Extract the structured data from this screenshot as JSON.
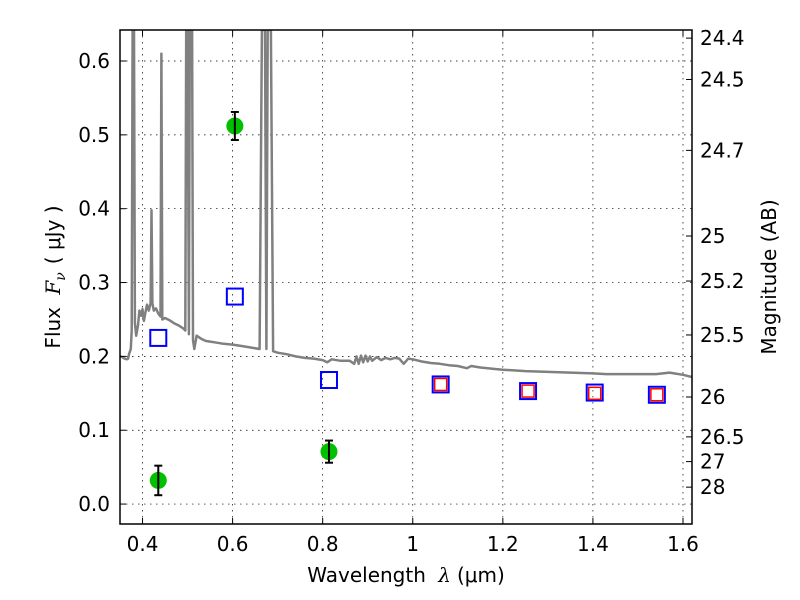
{
  "chart_data": {
    "type": "scatter",
    "title": "",
    "xlabel": "Wavelength  λ (μm)",
    "xlabel_parts": {
      "text": "Wavelength ",
      "symbol": "λ",
      "unit": "(μm)"
    },
    "ylabel": "Flux  F_ν ( μJy )",
    "ylabel_parts": {
      "text": "Flux ",
      "symbol": "F",
      "subscript": "ν",
      "unit": "( μJy )"
    },
    "y2label": "Magnitude (AB)",
    "xlim": [
      0.35,
      1.62
    ],
    "ylim": [
      -0.027,
      0.642
    ],
    "grid": true,
    "x_ticks": [
      0.4,
      0.6,
      0.8,
      1.0,
      1.2,
      1.4,
      1.6
    ],
    "x_tick_labels": [
      "0.4",
      "0.6",
      "0.8",
      "1",
      "1.2",
      "1.4",
      "1.6"
    ],
    "y_ticks": [
      0.0,
      0.1,
      0.2,
      0.3,
      0.4,
      0.5,
      0.6
    ],
    "y_tick_labels": [
      "0.0",
      "0.1",
      "0.2",
      "0.3",
      "0.4",
      "0.5",
      "0.6"
    ],
    "y2_ticks": [
      {
        "label": "24.4",
        "flux": 0.631
      },
      {
        "label": "24.5",
        "flux": 0.575
      },
      {
        "label": "24.7",
        "flux": 0.479
      },
      {
        "label": "25",
        "flux": 0.363
      },
      {
        "label": "25.2",
        "flux": 0.302
      },
      {
        "label": "25.5",
        "flux": 0.229
      },
      {
        "label": "26",
        "flux": 0.145
      },
      {
        "label": "26.5",
        "flux": 0.091
      },
      {
        "label": "27",
        "flux": 0.0575
      },
      {
        "label": "28",
        "flux": 0.0229
      }
    ],
    "series": [
      {
        "name": "model-spectrum",
        "kind": "line",
        "color": "#808080",
        "points": [
          [
            0.35,
            0.2
          ],
          [
            0.355,
            0.199
          ],
          [
            0.36,
            0.197
          ],
          [
            0.365,
            0.196
          ],
          [
            0.368,
            0.197
          ],
          [
            0.37,
            0.203
          ],
          [
            0.374,
            0.21
          ],
          [
            0.376,
            0.235
          ],
          [
            0.378,
            0.642
          ],
          [
            0.381,
            0.642
          ],
          [
            0.383,
            0.245
          ],
          [
            0.386,
            0.228
          ],
          [
            0.39,
            0.242
          ],
          [
            0.393,
            0.262
          ],
          [
            0.397,
            0.255
          ],
          [
            0.4,
            0.264
          ],
          [
            0.403,
            0.248
          ],
          [
            0.406,
            0.258
          ],
          [
            0.41,
            0.27
          ],
          [
            0.414,
            0.262
          ],
          [
            0.418,
            0.272
          ],
          [
            0.42,
            0.398
          ],
          [
            0.422,
            0.272
          ],
          [
            0.425,
            0.262
          ],
          [
            0.43,
            0.265
          ],
          [
            0.435,
            0.258
          ],
          [
            0.44,
            0.254
          ],
          [
            0.442,
            0.61
          ],
          [
            0.444,
            0.25
          ],
          [
            0.45,
            0.252
          ],
          [
            0.46,
            0.249
          ],
          [
            0.47,
            0.245
          ],
          [
            0.48,
            0.242
          ],
          [
            0.49,
            0.238
          ],
          [
            0.495,
            0.235
          ],
          [
            0.497,
            0.642
          ],
          [
            0.5,
            0.642
          ],
          [
            0.503,
            0.23
          ],
          [
            0.505,
            0.642
          ],
          [
            0.51,
            0.642
          ],
          [
            0.512,
            0.222
          ],
          [
            0.515,
            0.21
          ],
          [
            0.52,
            0.228
          ],
          [
            0.53,
            0.224
          ],
          [
            0.54,
            0.221
          ],
          [
            0.55,
            0.22
          ],
          [
            0.56,
            0.219
          ],
          [
            0.58,
            0.217
          ],
          [
            0.6,
            0.216
          ],
          [
            0.62,
            0.214
          ],
          [
            0.64,
            0.212
          ],
          [
            0.66,
            0.21
          ],
          [
            0.665,
            0.642
          ],
          [
            0.672,
            0.642
          ],
          [
            0.675,
            0.21
          ],
          [
            0.678,
            0.642
          ],
          [
            0.685,
            0.642
          ],
          [
            0.69,
            0.207
          ],
          [
            0.7,
            0.205
          ],
          [
            0.72,
            0.203
          ],
          [
            0.74,
            0.2
          ],
          [
            0.76,
            0.198
          ],
          [
            0.78,
            0.197
          ],
          [
            0.8,
            0.195
          ],
          [
            0.81,
            0.192
          ],
          [
            0.82,
            0.196
          ],
          [
            0.84,
            0.194
          ],
          [
            0.86,
            0.194
          ],
          [
            0.87,
            0.19
          ],
          [
            0.875,
            0.2
          ],
          [
            0.88,
            0.19
          ],
          [
            0.885,
            0.201
          ],
          [
            0.89,
            0.192
          ],
          [
            0.895,
            0.201
          ],
          [
            0.9,
            0.193
          ],
          [
            0.905,
            0.2
          ],
          [
            0.91,
            0.194
          ],
          [
            0.92,
            0.199
          ],
          [
            0.93,
            0.195
          ],
          [
            0.94,
            0.198
          ],
          [
            0.95,
            0.196
          ],
          [
            0.96,
            0.198
          ],
          [
            0.97,
            0.197
          ],
          [
            0.98,
            0.19
          ],
          [
            0.99,
            0.197
          ],
          [
            1.0,
            0.196
          ],
          [
            1.02,
            0.193
          ],
          [
            1.04,
            0.191
          ],
          [
            1.06,
            0.19
          ],
          [
            1.08,
            0.188
          ],
          [
            1.1,
            0.187
          ],
          [
            1.12,
            0.184
          ],
          [
            1.13,
            0.187
          ],
          [
            1.15,
            0.185
          ],
          [
            1.18,
            0.183
          ],
          [
            1.2,
            0.182
          ],
          [
            1.25,
            0.18
          ],
          [
            1.3,
            0.179
          ],
          [
            1.35,
            0.178
          ],
          [
            1.4,
            0.177
          ],
          [
            1.43,
            0.176
          ],
          [
            1.46,
            0.176
          ],
          [
            1.5,
            0.176
          ],
          [
            1.54,
            0.176
          ],
          [
            1.57,
            0.178
          ],
          [
            1.6,
            0.175
          ],
          [
            1.62,
            0.172
          ]
        ]
      },
      {
        "name": "model-photometry",
        "kind": "open-square",
        "color": "#0000ff",
        "points": [
          [
            0.435,
            0.225
          ],
          [
            0.605,
            0.281
          ],
          [
            0.814,
            0.168
          ],
          [
            1.062,
            0.162
          ],
          [
            1.256,
            0.153
          ],
          [
            1.404,
            0.151
          ],
          [
            1.542,
            0.148
          ]
        ]
      },
      {
        "name": "model-photometry-nir",
        "kind": "open-square",
        "color": "#ff0000",
        "points": [
          [
            1.062,
            0.162
          ],
          [
            1.256,
            0.153
          ],
          [
            1.404,
            0.15
          ],
          [
            1.542,
            0.148
          ]
        ]
      },
      {
        "name": "observed-photometry",
        "kind": "filled-circle-errorbar",
        "color": "#00c000",
        "errcolor": "#000000",
        "points": [
          {
            "x": 0.435,
            "y": 0.032,
            "err": 0.02
          },
          {
            "x": 0.605,
            "y": 0.512,
            "err": 0.019
          },
          {
            "x": 0.814,
            "y": 0.071,
            "err": 0.015
          }
        ]
      }
    ]
  }
}
